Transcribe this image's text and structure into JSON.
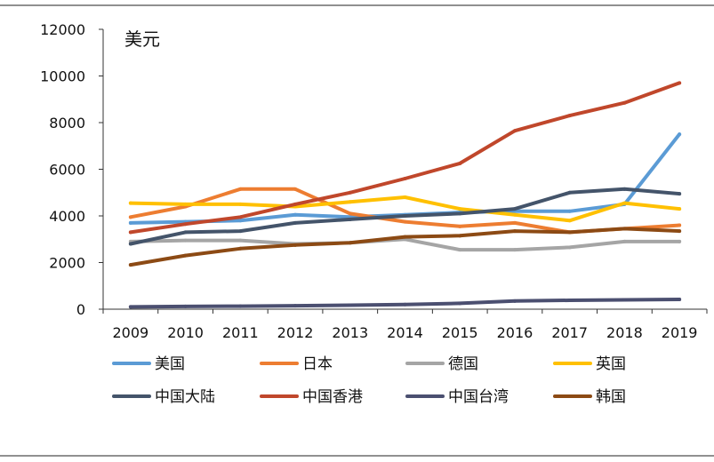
{
  "chart_data": {
    "type": "line",
    "unit_label": "美元",
    "x": [
      "2009",
      "2010",
      "2011",
      "2012",
      "2013",
      "2014",
      "2015",
      "2016",
      "2017",
      "2018",
      "2019"
    ],
    "ylim": [
      0,
      12000
    ],
    "yticks": [
      "0",
      "2000",
      "4000",
      "6000",
      "8000",
      "10000",
      "12000"
    ],
    "grid": false,
    "legend_position": "bottom",
    "series": [
      {
        "name": "美国",
        "color": "#5b9bd5",
        "values": [
          3700,
          3750,
          3800,
          4050,
          3950,
          4050,
          4150,
          4200,
          4200,
          4500,
          7500
        ]
      },
      {
        "name": "日本",
        "color": "#ed7d31",
        "values": [
          3950,
          4400,
          5150,
          5150,
          4100,
          3750,
          3550,
          3700,
          3300,
          3450,
          3600
        ]
      },
      {
        "name": "德国",
        "color": "#a5a5a5",
        "values": [
          2900,
          2950,
          2950,
          2800,
          2850,
          3000,
          2550,
          2550,
          2650,
          2900,
          2900
        ]
      },
      {
        "name": "英国",
        "color": "#ffc000",
        "values": [
          4550,
          4500,
          4500,
          4400,
          4600,
          4800,
          4300,
          4050,
          3800,
          4550,
          4300
        ]
      },
      {
        "name": "中国大陆",
        "color": "#44546a",
        "values": [
          2800,
          3300,
          3350,
          3700,
          3850,
          4000,
          4100,
          4300,
          5000,
          5150,
          4950
        ]
      },
      {
        "name": "中国香港",
        "color": "#c0472b",
        "values": [
          3300,
          3650,
          3950,
          4500,
          5000,
          5600,
          6250,
          7650,
          8300,
          8850,
          9700
        ]
      },
      {
        "name": "中国台湾",
        "color": "#4b4f70",
        "values": [
          100,
          120,
          130,
          150,
          170,
          200,
          250,
          350,
          380,
          400,
          420
        ]
      },
      {
        "name": "韩国",
        "color": "#8c4a14",
        "values": [
          1900,
          2300,
          2600,
          2750,
          2850,
          3100,
          3150,
          3350,
          3300,
          3450,
          3350
        ]
      }
    ]
  }
}
